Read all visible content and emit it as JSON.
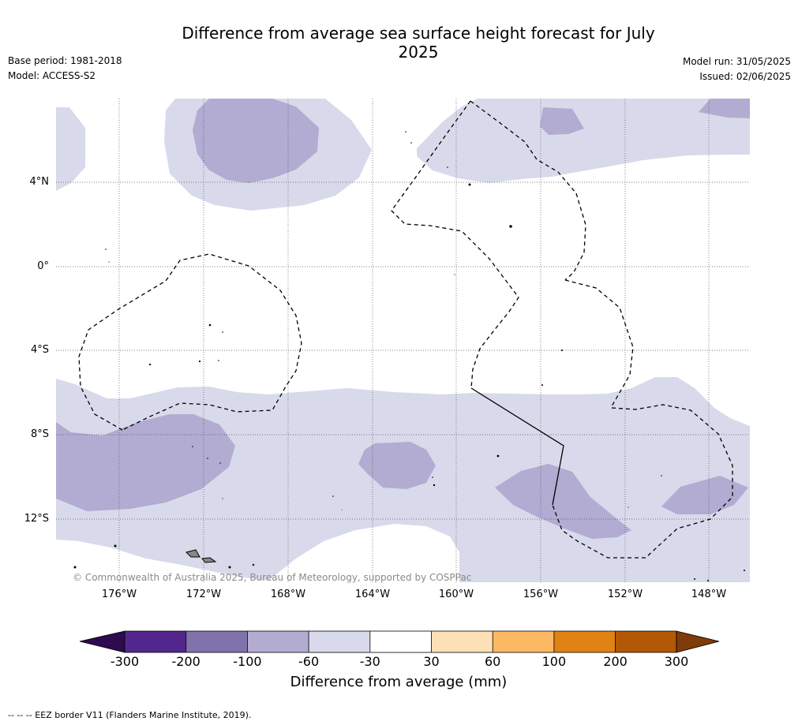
{
  "title": "Difference from average sea surface height forecast for July 2025",
  "base_period": "Base period: 1981-2018",
  "model": "Model: ACCESS-S2",
  "model_run": "Model run: 31/05/2025",
  "issued": "Issued: 02/06/2025",
  "copyright": "© Commonwealth of Australia 2025, Bureau of Meteorology, supported by COSPPac",
  "map": {
    "lon_labels": [
      "176°W",
      "172°W",
      "168°W",
      "164°W",
      "160°W",
      "156°W",
      "152°W",
      "148°W"
    ],
    "lat_labels": [
      "4°N",
      "0°",
      "4°S",
      "8°S",
      "12°S"
    ],
    "gridlines": true
  },
  "colorbar": {
    "title": "Difference from average (mm)",
    "tick_labels": [
      "-300",
      "-200",
      "-100",
      "-60",
      "-30",
      "30",
      "60",
      "100",
      "200",
      "300"
    ],
    "colors": [
      "#2d0b4e",
      "#54278f",
      "#8073ac",
      "#b2abd2",
      "#d8daeb",
      "#ffffff",
      "#fee0b6",
      "#fdb863",
      "#e08214",
      "#b35806",
      "#7f3b08"
    ]
  },
  "footnote": "--  --  -- EEZ border V11 (Flanders Marine Institute, 2019)."
}
